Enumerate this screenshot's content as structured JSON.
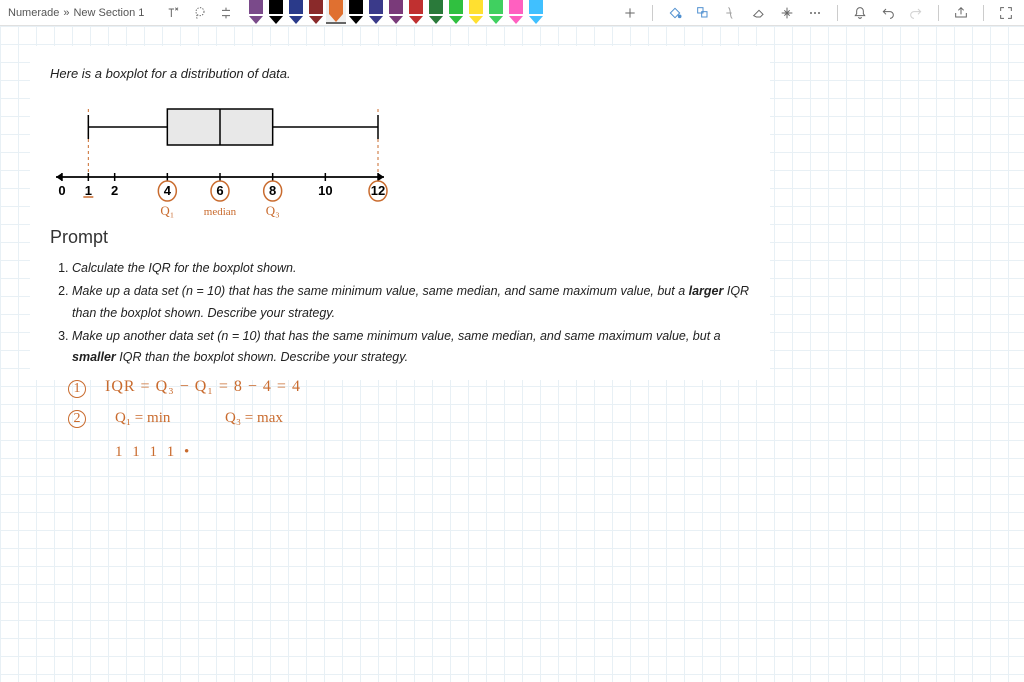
{
  "breadcrumb": {
    "site": "Numerade",
    "sep": "»",
    "section": "New Section 1"
  },
  "pens": [
    {
      "color": "#7a4a8a",
      "type": "marker"
    },
    {
      "color": "#000000",
      "type": "marker"
    },
    {
      "color": "#2a3a8a",
      "type": "marker"
    },
    {
      "color": "#8a2a2a",
      "type": "marker"
    },
    {
      "color": "#e07030",
      "type": "marker",
      "selected": true
    },
    {
      "color": "#000000",
      "type": "pen"
    },
    {
      "color": "#3a3a8a",
      "type": "pen"
    },
    {
      "color": "#7a3a7a",
      "type": "pen"
    },
    {
      "color": "#c03030",
      "type": "pen"
    },
    {
      "color": "#2a7a3a",
      "type": "pen"
    },
    {
      "color": "#30c040",
      "type": "pen"
    },
    {
      "color": "#ffe030",
      "type": "highlighter"
    },
    {
      "color": "#40d060",
      "type": "highlighter"
    },
    {
      "color": "#ff60c0",
      "type": "highlighter"
    },
    {
      "color": "#40c0ff",
      "type": "highlighter"
    }
  ],
  "content": {
    "intro": "Here is a boxplot for a distribution of data.",
    "prompt_heading": "Prompt",
    "prompts": [
      "Calculate the IQR for the boxplot shown.",
      "Make up a data set (n = 10) that has the same minimum value, same median, and same maximum value, but a <b class='larger'>larger</b> IQR than the boxplot shown. Describe your strategy.",
      "Make up another data set (n = 10) that has the same minimum value, same median, and same maximum value, but a <b class='smaller'>smaller</b> IQR than the boxplot shown. Describe your strategy."
    ]
  },
  "boxplot": {
    "axis_min": 0,
    "axis_max": 12,
    "ticks": [
      0,
      1,
      2,
      4,
      6,
      8,
      10,
      12
    ],
    "min": 1,
    "q1": 4,
    "median": 6,
    "q3": 8,
    "max": 12,
    "box_fill": "#e8e8e8",
    "line_color": "#000000",
    "whisker_dash_color": "#c96b2e",
    "axis_color": "#000000"
  },
  "annotations": {
    "color": "#c96b2e",
    "circles": [
      4,
      6,
      8,
      12
    ],
    "q1_label": "Q₁",
    "median_label": "median",
    "q3_label": "Q₃",
    "answer1_num": "1",
    "answer1_text": "IQR = Q₃ − Q₁  = 8 − 4 = 4",
    "answer2_num": "2",
    "answer2_a": "Q₁ = min",
    "answer2_b": "Q₃ = max",
    "ticks_line": "1  1  1  1   •"
  }
}
